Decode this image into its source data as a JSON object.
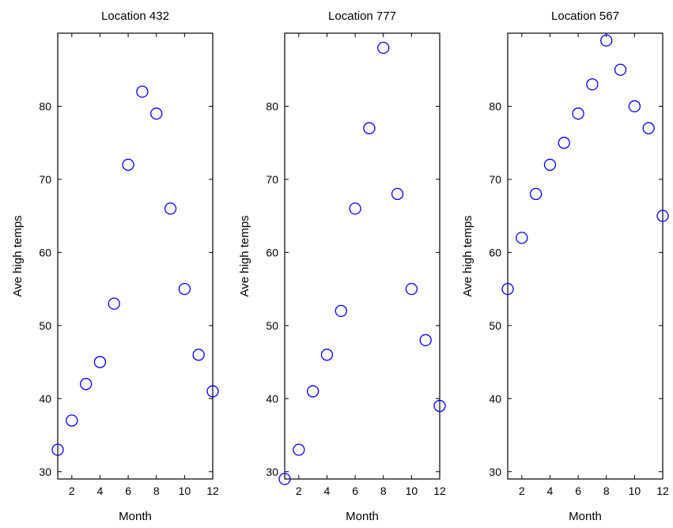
{
  "chart_data": [
    {
      "type": "scatter",
      "title": "Location 432",
      "xlabel": "Month",
      "ylabel": "Ave high temps",
      "xlim": [
        1,
        12
      ],
      "ylim": [
        29,
        90
      ],
      "xticks": [
        2,
        4,
        6,
        8,
        10,
        12
      ],
      "yticks": [
        30,
        40,
        50,
        60,
        70,
        80
      ],
      "grid": false,
      "marker_color": "#0000ff",
      "series": [
        {
          "x": [
            1,
            2,
            3,
            4,
            5,
            6,
            7,
            8,
            9,
            10,
            11,
            12
          ],
          "y": [
            33,
            37,
            42,
            45,
            53,
            72,
            82,
            79,
            66,
            55,
            46,
            41
          ]
        }
      ]
    },
    {
      "type": "scatter",
      "title": "Location 777",
      "xlabel": "Month",
      "ylabel": "Ave high temps",
      "xlim": [
        1,
        12
      ],
      "ylim": [
        29,
        90
      ],
      "xticks": [
        2,
        4,
        6,
        8,
        10,
        12
      ],
      "yticks": [
        30,
        40,
        50,
        60,
        70,
        80
      ],
      "grid": false,
      "marker_color": "#0000ff",
      "series": [
        {
          "x": [
            1,
            2,
            3,
            4,
            5,
            6,
            7,
            8,
            9,
            10,
            11,
            12
          ],
          "y": [
            29,
            33,
            41,
            46,
            52,
            66,
            77,
            88,
            68,
            55,
            48,
            39
          ]
        }
      ]
    },
    {
      "type": "scatter",
      "title": "Location 567",
      "xlabel": "Month",
      "ylabel": "Ave high temps",
      "xlim": [
        1,
        12
      ],
      "ylim": [
        29,
        90
      ],
      "xticks": [
        2,
        4,
        6,
        8,
        10,
        12
      ],
      "yticks": [
        30,
        40,
        50,
        60,
        70,
        80
      ],
      "grid": false,
      "marker_color": "#0000ff",
      "series": [
        {
          "x": [
            1,
            2,
            3,
            4,
            5,
            6,
            7,
            8,
            9,
            10,
            11,
            12
          ],
          "y": [
            55,
            62,
            68,
            72,
            75,
            79,
            83,
            89,
            85,
            80,
            77,
            65
          ]
        }
      ]
    }
  ]
}
